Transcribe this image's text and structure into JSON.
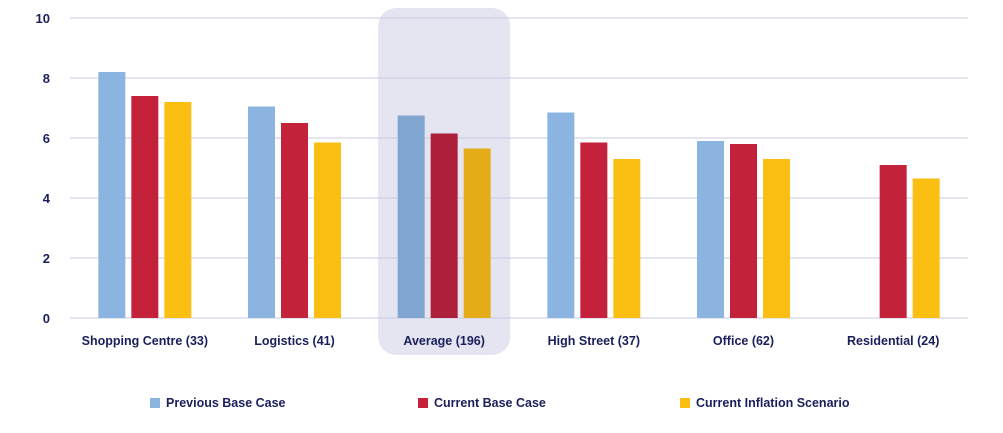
{
  "chart_data": {
    "type": "bar",
    "categories": [
      "Shopping Centre (33)",
      "Logistics (41)",
      "Average (196)",
      "High Street (37)",
      "Office (62)",
      "Residential (24)"
    ],
    "highlighted_category": "Average (196)",
    "series": [
      {
        "name": "Previous Base Case",
        "color": "#8cb4e0",
        "highlight_color": "#7fa5d0",
        "values": [
          8.2,
          7.05,
          6.75,
          6.85,
          5.9,
          null
        ]
      },
      {
        "name": "Current Base Case",
        "color": "#c4213a",
        "highlight_color": "#ad1f3a",
        "values": [
          7.4,
          6.5,
          6.15,
          5.85,
          5.8,
          5.1
        ]
      },
      {
        "name": "Current Inflation Scenario",
        "color": "#fbbf13",
        "highlight_color": "#e4ad17",
        "values": [
          7.2,
          5.85,
          5.65,
          5.3,
          5.3,
          4.65
        ]
      }
    ],
    "yticks": [
      "0",
      "2",
      "4",
      "6",
      "8",
      "10"
    ],
    "ylim": [
      0,
      10
    ],
    "grid": true,
    "gridline_color": "#c9cbe3",
    "highlight_band_color": "#e4e5f0",
    "legend_position": "bottom",
    "title": "",
    "xlabel": "",
    "ylabel": ""
  }
}
